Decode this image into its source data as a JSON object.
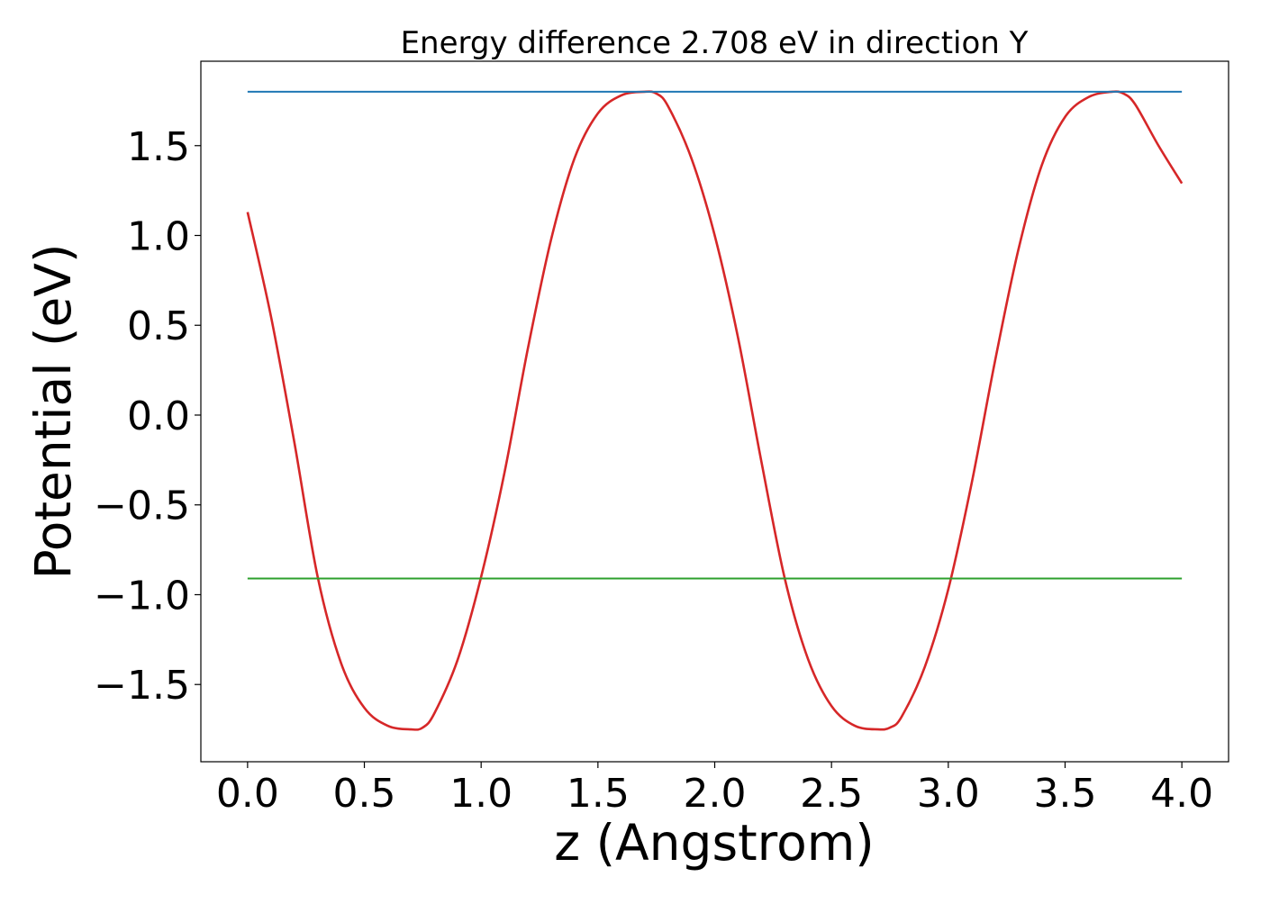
{
  "chart_data": {
    "type": "line",
    "title": "Energy difference 2.708 eV in direction Y",
    "xlabel": "z (Angstrom)",
    "ylabel": "Potential (eV)",
    "xlim": [
      -0.2,
      4.2
    ],
    "ylim": [
      -1.93,
      1.97
    ],
    "x_ticks": [
      0.0,
      0.5,
      1.0,
      1.5,
      2.0,
      2.5,
      3.0,
      3.5,
      4.0
    ],
    "x_tick_labels": [
      "0.0",
      "0.5",
      "1.0",
      "1.5",
      "2.0",
      "2.5",
      "3.0",
      "3.5",
      "4.0"
    ],
    "y_ticks": [
      -1.5,
      -1.0,
      -0.5,
      0.0,
      0.5,
      1.0,
      1.5
    ],
    "y_tick_labels": [
      "−1.5",
      "−1.0",
      "−0.5",
      "0.0",
      "0.5",
      "1.0",
      "1.5"
    ],
    "grid": false,
    "legend": "none",
    "series": [
      {
        "color": "#d62728",
        "style": "curve",
        "x": [
          0.0,
          0.1,
          0.2,
          0.3,
          0.4,
          0.5,
          0.6,
          0.7,
          0.75,
          0.8,
          0.9,
          1.0,
          1.1,
          1.2,
          1.3,
          1.4,
          1.5,
          1.6,
          1.7,
          1.75,
          1.8,
          1.9,
          2.0,
          2.1,
          2.2,
          2.3,
          2.4,
          2.5,
          2.6,
          2.7,
          2.75,
          2.8,
          2.9,
          3.0,
          3.1,
          3.2,
          3.3,
          3.4,
          3.5,
          3.6,
          3.7,
          3.75,
          3.8,
          3.9,
          4.0
        ],
        "values": [
          1.13,
          0.55,
          -0.15,
          -0.9,
          -1.38,
          -1.63,
          -1.73,
          -1.75,
          -1.74,
          -1.66,
          -1.36,
          -0.9,
          -0.32,
          0.37,
          0.98,
          1.43,
          1.68,
          1.78,
          1.8,
          1.79,
          1.72,
          1.43,
          1.0,
          0.43,
          -0.26,
          -0.91,
          -1.36,
          -1.62,
          -1.73,
          -1.75,
          -1.74,
          -1.68,
          -1.4,
          -0.97,
          -0.38,
          0.3,
          0.92,
          1.39,
          1.66,
          1.77,
          1.8,
          1.79,
          1.73,
          1.5,
          1.29
        ]
      },
      {
        "color": "#1f77b4",
        "style": "line",
        "x": [
          0.0,
          4.0
        ],
        "values": [
          1.8,
          1.8
        ]
      },
      {
        "color": "#2ca02c",
        "style": "line",
        "x": [
          0.0,
          4.0
        ],
        "values": [
          -0.91,
          -0.91
        ]
      }
    ]
  }
}
